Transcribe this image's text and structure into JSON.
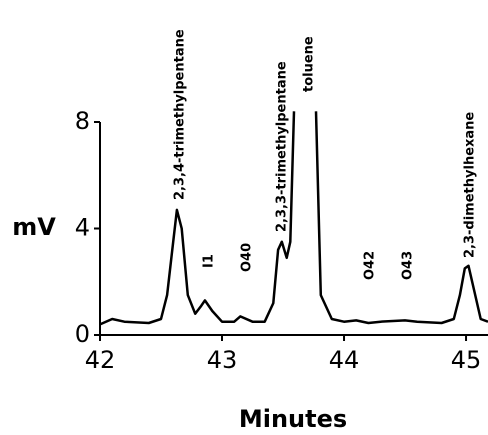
{
  "chart_data": {
    "type": "line",
    "xlabel": "Minutes",
    "ylabel": "mV",
    "x": [
      42.0,
      42.1,
      42.2,
      42.4,
      42.5,
      42.55,
      42.6,
      42.63,
      42.67,
      42.72,
      42.78,
      42.83,
      42.86,
      42.92,
      43.0,
      43.1,
      43.15,
      43.25,
      43.35,
      43.42,
      43.46,
      43.49,
      43.53,
      43.56,
      43.59,
      43.7,
      43.77,
      43.81,
      43.9,
      44.0,
      44.1,
      44.2,
      44.3,
      44.5,
      44.6,
      44.8,
      44.9,
      44.95,
      44.99,
      45.02,
      45.07,
      45.12,
      45.18
    ],
    "values": [
      0.4,
      0.6,
      0.5,
      0.45,
      0.6,
      1.5,
      3.5,
      4.7,
      4.0,
      1.5,
      0.8,
      1.1,
      1.3,
      0.9,
      0.5,
      0.5,
      0.7,
      0.5,
      0.5,
      1.2,
      3.2,
      3.5,
      2.9,
      3.5,
      8.4,
      null,
      8.4,
      1.5,
      0.6,
      0.5,
      0.55,
      0.45,
      0.5,
      0.55,
      0.5,
      0.45,
      0.6,
      1.5,
      2.5,
      2.6,
      1.6,
      0.6,
      0.5
    ],
    "color": "#000000",
    "xlim": [
      42,
      45.18
    ],
    "xticks": [
      42,
      43,
      44,
      45
    ],
    "ylim": [
      0,
      8
    ],
    "yticks": [
      0,
      4,
      8
    ],
    "grid": false,
    "annotations": [
      "2,3,4-trimethylpentane",
      "I1",
      "O40",
      "2,3,3-trimethylpentane",
      "toluene",
      "O42",
      "O43",
      "2,3-dimethylhexane"
    ]
  }
}
